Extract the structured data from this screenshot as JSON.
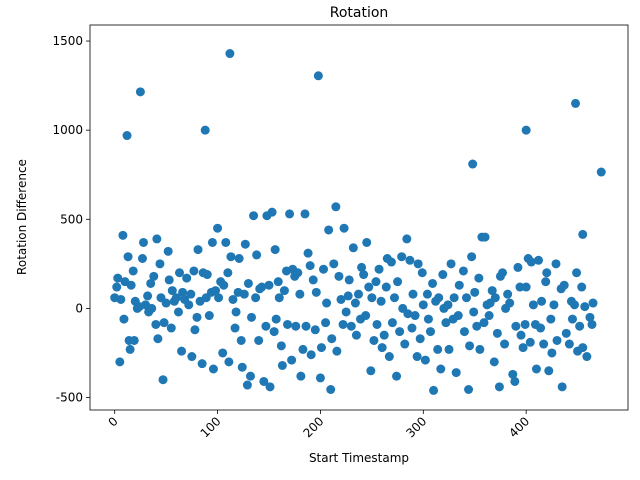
{
  "chart_data": {
    "type": "scatter",
    "title": "Rotation",
    "x_label": "Start Timestamp",
    "y_label": "Rotation Difference",
    "color": "#1f77b4",
    "xlim": [
      -24,
      499
    ],
    "ylim": [
      -570,
      1590
    ],
    "xticks": [
      0,
      100,
      200,
      300,
      400
    ],
    "yticks": [
      -500,
      0,
      500,
      1000,
      1500
    ],
    "x": [
      0,
      2,
      3,
      5,
      6,
      8,
      9,
      10,
      12,
      13,
      14,
      15,
      16,
      18,
      19,
      20,
      22,
      24,
      25,
      27,
      28,
      30,
      32,
      33,
      35,
      36,
      38,
      40,
      41,
      42,
      44,
      45,
      47,
      48,
      50,
      52,
      53,
      55,
      56,
      58,
      60,
      62,
      63,
      65,
      66,
      68,
      70,
      72,
      74,
      75,
      77,
      78,
      80,
      81,
      83,
      85,
      86,
      88,
      89,
      90,
      92,
      94,
      95,
      96,
      98,
      100,
      101,
      103,
      105,
      106,
      108,
      110,
      111,
      112,
      113,
      115,
      117,
      118,
      120,
      121,
      123,
      124,
      126,
      127,
      129,
      130,
      132,
      133,
      135,
      137,
      138,
      140,
      141,
      143,
      145,
      147,
      148,
      150,
      151,
      153,
      155,
      156,
      157,
      159,
      160,
      162,
      163,
      165,
      167,
      168,
      170,
      172,
      173,
      175,
      176,
      178,
      180,
      181,
      183,
      185,
      186,
      188,
      190,
      191,
      193,
      195,
      196,
      198,
      200,
      201,
      203,
      205,
      206,
      208,
      210,
      211,
      213,
      215,
      216,
      218,
      220,
      222,
      223,
      225,
      227,
      228,
      230,
      232,
      234,
      235,
      237,
      239,
      240,
      242,
      244,
      245,
      247,
      249,
      250,
      252,
      254,
      255,
      257,
      259,
      260,
      262,
      264,
      265,
      267,
      269,
      270,
      272,
      274,
      275,
      277,
      279,
      280,
      282,
      284,
      285,
      287,
      289,
      290,
      292,
      294,
      295,
      297,
      299,
      300,
      302,
      304,
      305,
      307,
      309,
      310,
      312,
      314,
      315,
      317,
      319,
      320,
      322,
      324,
      325,
      327,
      329,
      330,
      332,
      334,
      335,
      348,
      339,
      340,
      342,
      344,
      345,
      347,
      349,
      350,
      352,
      354,
      355,
      357,
      359,
      360,
      362,
      364,
      365,
      367,
      369,
      370,
      372,
      374,
      375,
      377,
      379,
      380,
      382,
      384,
      400,
      387,
      389,
      390,
      392,
      394,
      395,
      397,
      399,
      400,
      402,
      404,
      405,
      407,
      409,
      410,
      412,
      414,
      415,
      417,
      419,
      420,
      422,
      424,
      425,
      427,
      429,
      430,
      448,
      434,
      435,
      437,
      439,
      455,
      442,
      444,
      445,
      447,
      449,
      450,
      452,
      454,
      455,
      457,
      459,
      473,
      462,
      464,
      465
    ],
    "y": [
      60,
      120,
      170,
      -300,
      50,
      410,
      -60,
      150,
      970,
      290,
      -180,
      -230,
      130,
      210,
      -180,
      40,
      0,
      10,
      1215,
      280,
      370,
      20,
      70,
      -20,
      140,
      0,
      180,
      -90,
      390,
      -170,
      250,
      60,
      -400,
      -80,
      30,
      320,
      160,
      -110,
      100,
      40,
      60,
      -20,
      200,
      -240,
      90,
      50,
      170,
      20,
      80,
      -270,
      210,
      -120,
      -50,
      330,
      40,
      -310,
      200,
      1000,
      60,
      190,
      -40,
      90,
      370,
      -340,
      100,
      450,
      60,
      150,
      -250,
      130,
      370,
      200,
      -300,
      1430,
      290,
      50,
      -110,
      -20,
      90,
      280,
      -180,
      -330,
      80,
      360,
      -430,
      140,
      -380,
      -50,
      520,
      60,
      300,
      -180,
      110,
      120,
      -410,
      -100,
      520,
      130,
      -440,
      540,
      -130,
      330,
      -60,
      150,
      60,
      -210,
      -320,
      100,
      210,
      -90,
      530,
      -290,
      220,
      180,
      -100,
      200,
      80,
      -380,
      -230,
      530,
      -100,
      310,
      240,
      -260,
      160,
      -120,
      90,
      1305,
      -390,
      -220,
      220,
      -80,
      30,
      440,
      -455,
      -170,
      250,
      570,
      -240,
      180,
      50,
      -90,
      450,
      -20,
      70,
      160,
      -100,
      340,
      30,
      -150,
      80,
      -60,
      230,
      190,
      -40,
      370,
      120,
      -350,
      60,
      -180,
      150,
      -90,
      220,
      40,
      -220,
      -150,
      120,
      280,
      -270,
      260,
      -80,
      60,
      -380,
      150,
      -130,
      290,
      0,
      -200,
      390,
      -30,
      270,
      -110,
      80,
      -40,
      -270,
      250,
      -170,
      200,
      20,
      -290,
      80,
      -60,
      -130,
      140,
      -460,
      40,
      -230,
      60,
      -340,
      190,
      0,
      -80,
      20,
      -230,
      250,
      -60,
      60,
      -360,
      -40,
      130,
      810,
      210,
      -130,
      60,
      -455,
      -210,
      290,
      -20,
      90,
      -100,
      170,
      -230,
      400,
      -80,
      400,
      20,
      -40,
      30,
      100,
      -300,
      60,
      -140,
      -440,
      180,
      200,
      -200,
      0,
      80,
      30,
      1000,
      -370,
      -410,
      -100,
      230,
      120,
      -150,
      -220,
      -90,
      120,
      280,
      -190,
      260,
      20,
      -90,
      -340,
      270,
      -110,
      40,
      -200,
      150,
      200,
      -350,
      -60,
      -250,
      20,
      250,
      -180,
      1150,
      110,
      -440,
      130,
      -140,
      415,
      -200,
      40,
      -60,
      20,
      200,
      -240,
      -100,
      120,
      -220,
      10,
      -270,
      765,
      -50,
      -90,
      30
    ]
  }
}
